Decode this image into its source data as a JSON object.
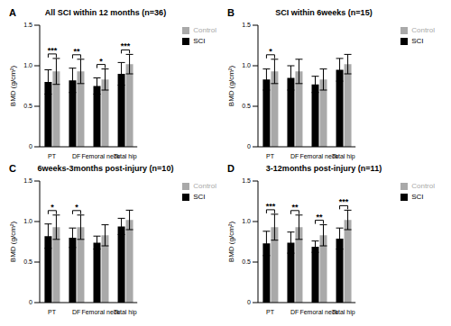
{
  "chart_data": [
    {
      "type": "bar",
      "panel": "A",
      "title": "All SCI within 12 months (n=36)",
      "y_label": "BMD (g/cm²)",
      "categories": [
        "PT",
        "DF",
        "Femoral neck",
        "Total hip"
      ],
      "series": [
        {
          "name": "SCI",
          "color": "#000000",
          "values": [
            0.8,
            0.82,
            0.75,
            0.9
          ],
          "errors": [
            0.15,
            0.15,
            0.1,
            0.14
          ]
        },
        {
          "name": "Control",
          "color": "#a9a9a9",
          "values": [
            0.93,
            0.93,
            0.83,
            1.02
          ],
          "errors": [
            0.16,
            0.15,
            0.13,
            0.12
          ]
        }
      ],
      "annotations": [
        "***",
        "**",
        "*",
        "***"
      ],
      "ylim": [
        0,
        1.5
      ],
      "yticks": [
        0,
        0.5,
        {
          "value": 1,
          "label": "1.0"
        },
        1.5
      ],
      "legend": "right"
    },
    {
      "type": "bar",
      "panel": "B",
      "title": "SCI within 6weeks (n=15)",
      "y_label": "BMD (g/cm²)",
      "categories": [
        "PT",
        "DF",
        "Femoral neck",
        "Total hip"
      ],
      "series": [
        {
          "name": "SCI",
          "color": "#000000",
          "values": [
            0.83,
            0.85,
            0.77,
            0.95
          ],
          "errors": [
            0.13,
            0.15,
            0.1,
            0.14
          ]
        },
        {
          "name": "Control",
          "color": "#a9a9a9",
          "values": [
            0.93,
            0.93,
            0.83,
            1.02
          ],
          "errors": [
            0.15,
            0.15,
            0.13,
            0.12
          ]
        }
      ],
      "annotations": [
        "*",
        null,
        null,
        null
      ],
      "ylim": [
        0,
        1.5
      ],
      "yticks": [
        0,
        0.5,
        {
          "value": 1,
          "label": "1.0"
        },
        1.5
      ],
      "legend": "right"
    },
    {
      "type": "bar",
      "panel": "C",
      "title": "6weeks-3months post-injury (n=10)",
      "y_label": "BMD (g/cm²)",
      "categories": [
        "PT",
        "DF",
        "Femoral neck",
        "Total hip"
      ],
      "series": [
        {
          "name": "SCI",
          "color": "#000000",
          "values": [
            0.82,
            0.8,
            0.74,
            0.94
          ],
          "errors": [
            0.15,
            0.12,
            0.08,
            0.1
          ]
        },
        {
          "name": "Control",
          "color": "#a9a9a9",
          "values": [
            0.93,
            0.93,
            0.83,
            1.02
          ],
          "errors": [
            0.15,
            0.15,
            0.13,
            0.12
          ]
        }
      ],
      "annotations": [
        "*",
        "*",
        null,
        null
      ],
      "ylim": [
        0,
        1.5
      ],
      "yticks": [
        0,
        0.5,
        {
          "value": 1,
          "label": "1.0"
        },
        1.5
      ],
      "legend": "right"
    },
    {
      "type": "bar",
      "panel": "D",
      "title": "3-12months  post-injury (n=11)",
      "y_label": "BMD (g/cm²)",
      "categories": [
        "PT",
        "DF",
        "Femoral neck",
        "Total hip"
      ],
      "series": [
        {
          "name": "SCI",
          "color": "#000000",
          "values": [
            0.73,
            0.74,
            0.69,
            0.79
          ],
          "errors": [
            0.15,
            0.13,
            0.07,
            0.13
          ]
        },
        {
          "name": "Control",
          "color": "#a9a9a9",
          "values": [
            0.93,
            0.93,
            0.83,
            1.02
          ],
          "errors": [
            0.16,
            0.15,
            0.13,
            0.12
          ]
        }
      ],
      "annotations": [
        "***",
        "**",
        "**",
        "***"
      ],
      "ylim": [
        0,
        1.5
      ],
      "yticks": [
        0,
        0.5,
        {
          "value": 1,
          "label": "1.0"
        },
        1.5
      ],
      "legend": "right"
    }
  ]
}
